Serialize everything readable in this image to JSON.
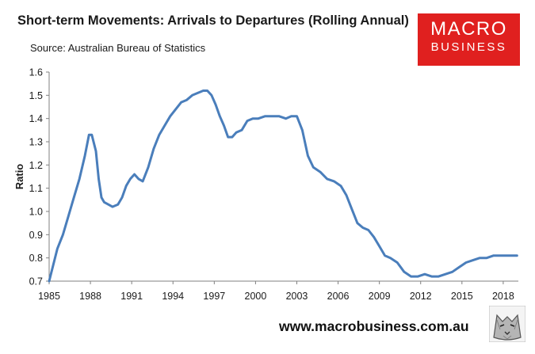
{
  "header": {
    "title": "Short-term Movements: Arrivals to Departures (Rolling Annual)",
    "source": "Source: Australian Bureau of Statistics"
  },
  "logo": {
    "line1": "MACRO",
    "line2": "BUSINESS",
    "color": "#e0201f"
  },
  "footer": {
    "url": "www.macrobusiness.com.au"
  },
  "colors": {
    "line": "#4a7ebb",
    "axis": "#808080"
  },
  "chart_data": {
    "type": "line",
    "title": "Short-term Movements: Arrivals to Departures (Rolling Annual)",
    "xlabel": "",
    "ylabel": "Ratio",
    "xlim": [
      1985,
      2019.1
    ],
    "ylim": [
      0.7,
      1.6
    ],
    "yticks": [
      "0.7",
      "0.8",
      "0.9",
      "1.0",
      "1.1",
      "1.2",
      "1.3",
      "1.4",
      "1.5",
      "1.6"
    ],
    "xticks": [
      "1985",
      "1988",
      "1991",
      "1994",
      "1997",
      "2000",
      "2003",
      "2006",
      "2009",
      "2012",
      "2015",
      "2018"
    ],
    "grid": false,
    "series": [
      {
        "name": "Arrivals to Departures",
        "x": [
          1985.0,
          1985.3,
          1985.6,
          1986.0,
          1986.4,
          1986.8,
          1987.2,
          1987.6,
          1987.9,
          1988.1,
          1988.4,
          1988.6,
          1988.8,
          1989.0,
          1989.3,
          1989.6,
          1990.0,
          1990.3,
          1990.6,
          1990.9,
          1991.2,
          1991.5,
          1991.8,
          1992.2,
          1992.6,
          1993.0,
          1993.4,
          1993.8,
          1994.2,
          1994.6,
          1995.0,
          1995.4,
          1995.8,
          1996.2,
          1996.5,
          1996.8,
          1997.1,
          1997.4,
          1997.7,
          1998.0,
          1998.3,
          1998.6,
          1999.0,
          1999.4,
          1999.8,
          2000.2,
          2000.7,
          2001.2,
          2001.7,
          2002.2,
          2002.6,
          2003.0,
          2003.4,
          2003.8,
          2004.2,
          2004.7,
          2005.2,
          2005.7,
          2006.2,
          2006.6,
          2007.0,
          2007.4,
          2007.8,
          2008.2,
          2008.6,
          2009.0,
          2009.4,
          2009.8,
          2010.3,
          2010.8,
          2011.3,
          2011.8,
          2012.3,
          2012.8,
          2013.3,
          2013.8,
          2014.3,
          2014.8,
          2015.3,
          2015.8,
          2016.3,
          2016.8,
          2017.3,
          2017.8,
          2018.3,
          2018.7,
          2019.0
        ],
        "values": [
          0.7,
          0.77,
          0.84,
          0.9,
          0.98,
          1.06,
          1.14,
          1.24,
          1.33,
          1.33,
          1.26,
          1.14,
          1.06,
          1.04,
          1.03,
          1.02,
          1.03,
          1.06,
          1.11,
          1.14,
          1.16,
          1.14,
          1.13,
          1.19,
          1.27,
          1.33,
          1.37,
          1.41,
          1.44,
          1.47,
          1.48,
          1.5,
          1.51,
          1.52,
          1.52,
          1.5,
          1.46,
          1.41,
          1.37,
          1.32,
          1.32,
          1.34,
          1.35,
          1.39,
          1.4,
          1.4,
          1.41,
          1.41,
          1.41,
          1.4,
          1.41,
          1.41,
          1.35,
          1.24,
          1.19,
          1.17,
          1.14,
          1.13,
          1.11,
          1.07,
          1.01,
          0.95,
          0.93,
          0.92,
          0.89,
          0.85,
          0.81,
          0.8,
          0.78,
          0.74,
          0.72,
          0.72,
          0.73,
          0.72,
          0.72,
          0.73,
          0.74,
          0.76,
          0.78,
          0.79,
          0.8,
          0.8,
          0.81,
          0.81,
          0.81,
          0.81,
          0.81
        ]
      }
    ]
  }
}
